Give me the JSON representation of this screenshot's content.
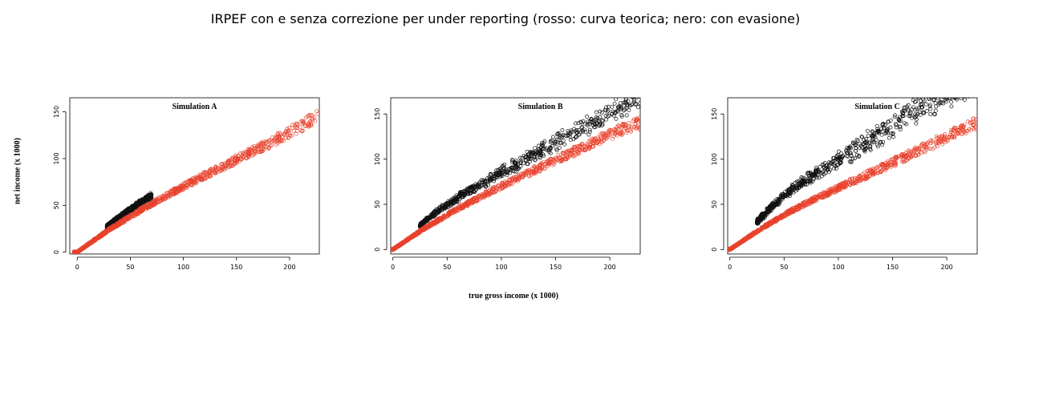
{
  "title": "IRPEF con e senza correzione per under reporting (rosso: curva teorica; nero: con evasione)",
  "ylabel": "net income (x 1000)",
  "xlabel": "true  gross income (x 1000)",
  "colors": {
    "theoretical": "#e8412c",
    "with_evasion": "#111111"
  },
  "chart_data": [
    {
      "type": "scatter",
      "title": "Simulation A",
      "xlim": [
        -7,
        228
      ],
      "ylim": [
        -2,
        165
      ],
      "xticks": [
        0,
        50,
        100,
        150,
        200
      ],
      "yticks": [
        0,
        50,
        100,
        150
      ],
      "xticklabels": [
        "0",
        "50",
        "100",
        "150",
        "200"
      ],
      "yticklabels": [
        "0",
        "50",
        "100",
        "150"
      ],
      "series": [
        {
          "color": "#111111",
          "evasion_range": [
            28,
            70
          ],
          "evasion_extra": 2.5,
          "x": [
            0,
            10,
            20,
            30,
            40,
            50,
            60,
            70
          ],
          "y": [
            0,
            9,
            18,
            28,
            36,
            44,
            52,
            58
          ]
        },
        {
          "color": "#e8412c",
          "x": [
            0,
            10,
            20,
            30,
            40,
            50,
            60,
            70,
            80,
            100,
            120,
            150,
            180,
            200,
            220,
            228
          ],
          "y": [
            0,
            8,
            16,
            24,
            31,
            38,
            45,
            51,
            58,
            70,
            82,
            99,
            116,
            128,
            141,
            150
          ]
        }
      ]
    },
    {
      "type": "scatter",
      "title": "Simulation B",
      "xlim": [
        -2,
        228
      ],
      "ylim": [
        -5,
        168
      ],
      "xticks": [
        0,
        50,
        100,
        150,
        200
      ],
      "yticks": [
        0,
        50,
        100,
        150
      ],
      "xticklabels": [
        "0",
        "50",
        "100",
        "150",
        "200"
      ],
      "yticklabels": [
        "0",
        "50",
        "100",
        "150"
      ],
      "series": [
        {
          "color": "#111111",
          "evasion_range": [
            25,
            228
          ],
          "evasion_extra": 7,
          "x": [
            0,
            10,
            20,
            30,
            40,
            50,
            60,
            70,
            80,
            100,
            120,
            150,
            180,
            200,
            220,
            228
          ],
          "y": [
            0,
            9,
            19,
            30,
            39,
            47,
            54,
            61,
            67,
            80,
            92,
            111,
            129,
            141,
            152,
            158
          ]
        },
        {
          "color": "#e8412c",
          "x": [
            0,
            10,
            20,
            30,
            40,
            50,
            60,
            70,
            80,
            100,
            120,
            150,
            180,
            200,
            220,
            228
          ],
          "y": [
            0,
            8,
            16,
            24,
            31,
            38,
            45,
            51,
            58,
            70,
            82,
            99,
            116,
            127,
            137,
            140
          ]
        }
      ]
    },
    {
      "type": "scatter",
      "title": "Simulation C",
      "xlim": [
        -2,
        228
      ],
      "ylim": [
        -5,
        168
      ],
      "xticks": [
        0,
        50,
        100,
        150,
        200
      ],
      "yticks": [
        0,
        50,
        100,
        150
      ],
      "xticklabels": [
        "0",
        "50",
        "100",
        "150",
        "200"
      ],
      "yticklabels": [
        "0",
        "50",
        "100",
        "150"
      ],
      "series": [
        {
          "color": "#111111",
          "evasion_range": [
            25,
            228
          ],
          "evasion_extra": 14,
          "x": [
            0,
            10,
            20,
            30,
            40,
            50,
            60,
            70,
            80,
            100,
            120,
            150,
            180,
            200,
            220
          ],
          "y": [
            0,
            10,
            22,
            34,
            45,
            55,
            64,
            71,
            77,
            90,
            103,
            125,
            145,
            158,
            166
          ]
        },
        {
          "color": "#e8412c",
          "x": [
            0,
            10,
            20,
            30,
            40,
            50,
            60,
            70,
            80,
            100,
            120,
            150,
            180,
            200,
            220,
            228
          ],
          "y": [
            0,
            8,
            16,
            24,
            31,
            38,
            45,
            51,
            57,
            68,
            79,
            96,
            113,
            125,
            136,
            140
          ]
        }
      ]
    }
  ]
}
